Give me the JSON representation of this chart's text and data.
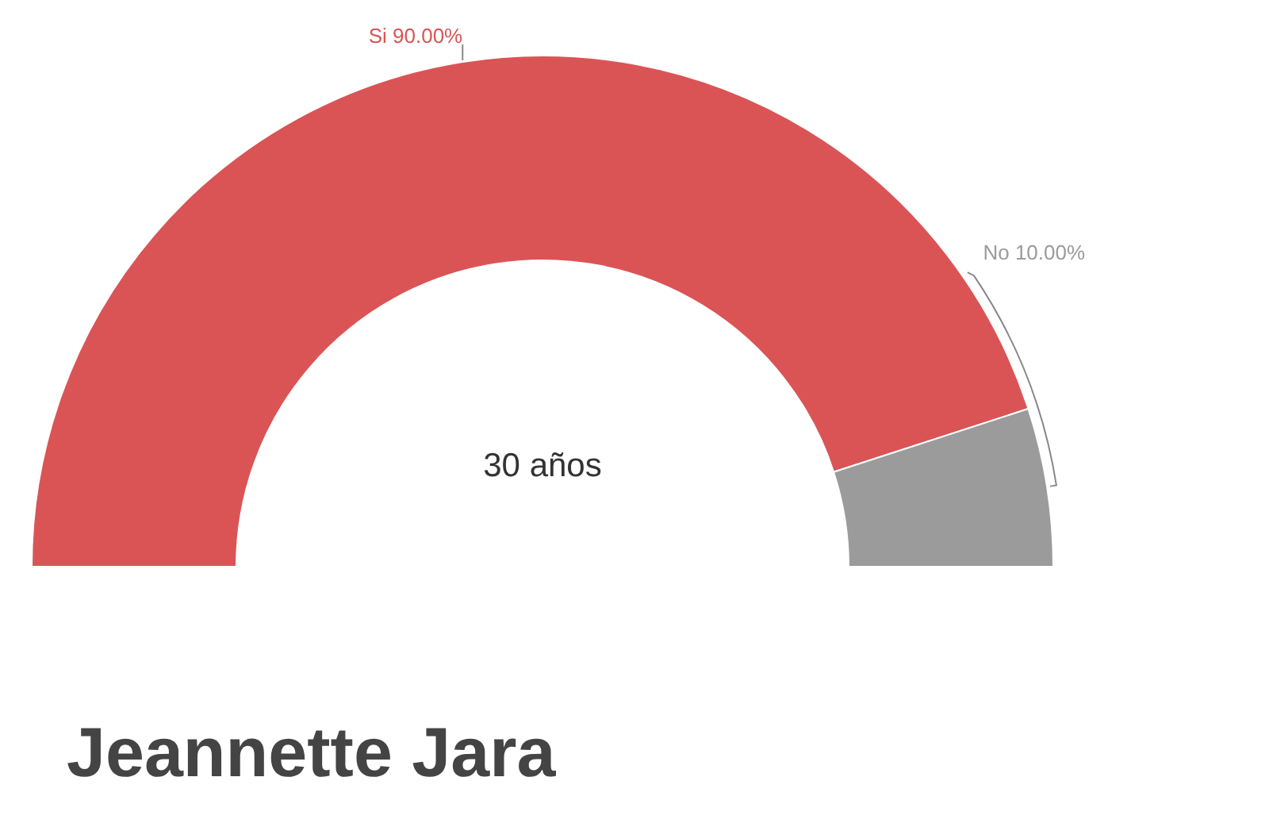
{
  "chart_data": {
    "type": "donut",
    "title": "Jeannette Jara",
    "categories": [
      "Si",
      "No"
    ],
    "values": [
      90,
      10
    ],
    "colors": [
      "#da5456",
      "#9b9b9b"
    ],
    "value_labels": [
      "90.00%",
      "10.00%"
    ],
    "annotations": [
      "30 años"
    ]
  }
}
